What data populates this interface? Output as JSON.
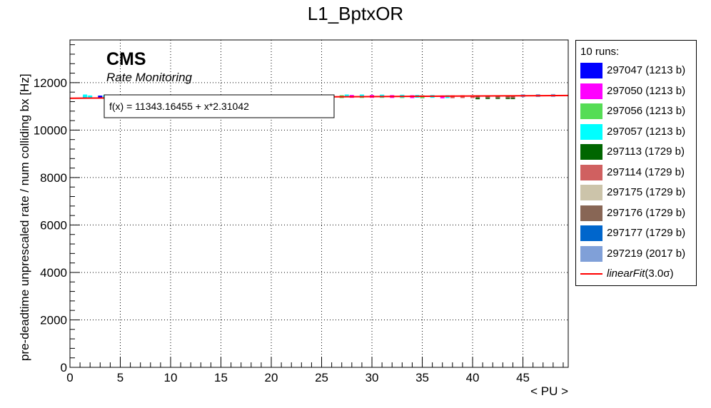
{
  "chart_data": {
    "type": "scatter",
    "title": "L1_BptxOR",
    "xlabel": "< PU >",
    "ylabel": "pre-deadtime unprescaled rate / num colliding bx [Hz]",
    "xlim": [
      0,
      49.5
    ],
    "ylim": [
      0,
      13800
    ],
    "xticks": [
      0,
      5,
      10,
      15,
      20,
      25,
      30,
      35,
      40,
      45
    ],
    "yticks": [
      0,
      2000,
      4000,
      6000,
      8000,
      10000,
      12000
    ],
    "grid": true,
    "brand": "CMS",
    "brand_subtitle": "Rate Monitoring",
    "fit_label": "f(x) = 11343.16455 + x*2.31042",
    "fit": {
      "intercept": 11343.16455,
      "slope": 2.31042,
      "x_range": [
        0,
        49.5
      ],
      "color": "#ff0000"
    },
    "legend": {
      "header": "10 runs:",
      "placement": "right",
      "fit_entry": "linearFit",
      "fit_entry_suffix": "(3.0σ)"
    },
    "series": [
      {
        "name": "297047 (1213 b)",
        "color": "#0000ff",
        "x": [
          1.5,
          3.0,
          4.5,
          6.0,
          8.0,
          10.0,
          12.0
        ],
        "y": [
          11380,
          11395,
          11400,
          11395,
          11390,
          11392,
          11395
        ]
      },
      {
        "name": "297050 (1213 b)",
        "color": "#ff00ff",
        "x": [
          22.0,
          24.0,
          26.0,
          28.0,
          30.0,
          32.0,
          34.0,
          35.0,
          37.0
        ],
        "y": [
          11400,
          11405,
          11410,
          11420,
          11420,
          11415,
          11410,
          11405,
          11400
        ]
      },
      {
        "name": "297056 (1213 b)",
        "color": "#55dd55",
        "x": [
          27.0,
          29.0,
          31.0,
          33.0,
          35.0
        ],
        "y": [
          11410,
          11415,
          11418,
          11412,
          11405
        ]
      },
      {
        "name": "297057 (1213 b)",
        "color": "#00ffff",
        "x": [
          1.5,
          2.0,
          3.5,
          5.0,
          7.0,
          9.0,
          11.0,
          13.0,
          27.5,
          29.0,
          31.0,
          33.0,
          34.5,
          36.0,
          37.5
        ],
        "y": [
          11440,
          11400,
          11410,
          11405,
          11400,
          11398,
          11400,
          11402,
          11440,
          11440,
          11435,
          11430,
          11425,
          11420,
          11410
        ]
      },
      {
        "name": "297113 (1729 b)",
        "color": "#006600",
        "x": [
          40.5,
          41.5,
          42.5,
          43.5,
          44.0
        ],
        "y": [
          11360,
          11370,
          11372,
          11368,
          11365
        ]
      },
      {
        "name": "297114 (1729 b)",
        "color": "#d06060",
        "x": [
          38.0,
          39.0,
          40.0
        ],
        "y": [
          11405,
          11410,
          11408
        ]
      },
      {
        "name": "297175 (1729 b)",
        "color": "#ccc4aa",
        "x": [
          16.0,
          18.0,
          20.0,
          22.0
        ],
        "y": [
          11380,
          11385,
          11388,
          11390
        ]
      },
      {
        "name": "297176 (1729 b)",
        "color": "#886655",
        "x": [
          40.5,
          41.5,
          42.5,
          43.5,
          44.0
        ],
        "y": [
          11410,
          11408,
          11405,
          11402,
          11398
        ]
      },
      {
        "name": "297177 (1729 b)",
        "color": "#0066cc",
        "x": [
          14.0,
          16.0,
          18.0
        ],
        "y": [
          11385,
          11390,
          11392
        ]
      },
      {
        "name": "297219 (2017 b)",
        "color": "#80a0d8",
        "x": [
          45.0,
          46.5,
          48.0
        ],
        "y": [
          11450,
          11455,
          11460
        ]
      }
    ]
  }
}
